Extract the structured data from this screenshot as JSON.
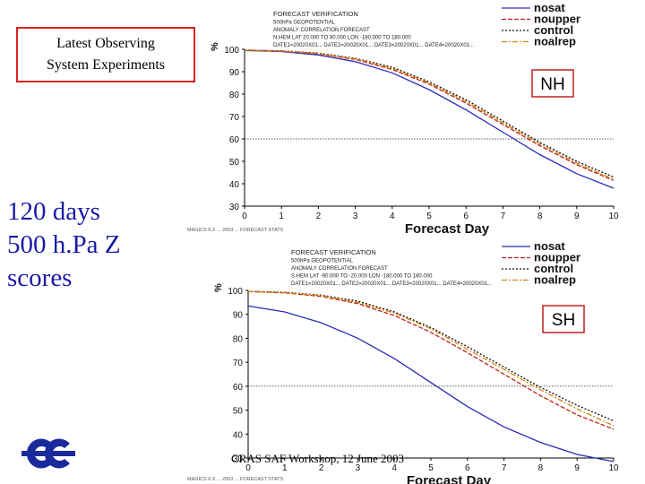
{
  "title_box": {
    "line1": "Latest Observing",
    "line2": "System Experiments"
  },
  "side_note": {
    "line1": "120 days",
    "line2": "500 h.Pa Z",
    "line3": "scores"
  },
  "footer": "CRAS SAF Workshop, 12 June 2003",
  "colors": {
    "nosat": "#2a2ab8",
    "noupper": "#c02020",
    "control": "#101010",
    "noalrep": "#d08a10",
    "box_border": "#d22222",
    "side_text": "#1a1aa8"
  },
  "chart_data": [
    {
      "type": "line",
      "hemisphere": "NH",
      "header": [
        "FORECAST VERIFICATION",
        "500hPa GEOPOTENTIAL",
        "ANOMALY CORRELATION   FORECAST",
        "N.HEM LAT 20.000 TO 90.000 LON -180.000 TO 180.000",
        "DATE1=20020X01... DATE2=20020X01... DATE3=20020X01... DATE4=20020X01..."
      ],
      "footnote": "MAGICS 6.X ... 2003 ... FORECAST STATS",
      "xlabel": "Forecast Day",
      "ylabel": "%",
      "xlim": [
        0,
        10
      ],
      "ylim": [
        30,
        100
      ],
      "xticks": [
        "0",
        "1",
        "2",
        "3",
        "4",
        "5",
        "6",
        "7",
        "8",
        "9",
        "10"
      ],
      "yticks": [
        "100",
        "90",
        "80",
        "70",
        "60",
        "50",
        "40",
        "30"
      ],
      "reference_line": 60,
      "x": [
        0,
        1,
        2,
        3,
        4,
        5,
        6,
        7,
        8,
        9,
        10
      ],
      "series": [
        {
          "name": "nosat",
          "values": [
            99.5,
            99.0,
            97.5,
            94.5,
            89.5,
            82.0,
            73.0,
            63.0,
            53.0,
            44.5,
            38.0
          ]
        },
        {
          "name": "noupper",
          "values": [
            99.6,
            99.2,
            98.0,
            95.5,
            91.0,
            84.5,
            76.0,
            66.5,
            57.0,
            48.5,
            41.5
          ]
        },
        {
          "name": "control",
          "values": [
            99.7,
            99.3,
            98.3,
            96.0,
            92.0,
            85.5,
            77.5,
            68.0,
            58.5,
            50.0,
            43.0
          ]
        },
        {
          "name": "noalrep",
          "values": [
            99.6,
            99.2,
            98.1,
            95.8,
            91.5,
            85.0,
            76.8,
            67.2,
            57.8,
            49.2,
            42.0
          ]
        }
      ],
      "label": "NH"
    },
    {
      "type": "line",
      "hemisphere": "SH",
      "header": [
        "FORECAST VERIFICATION",
        "500hPa GEOPOTENTIAL",
        "ANOMALY CORRELATION   FORECAST",
        "S.HEM LAT -90.000 TO -20.000 LON -180.000 TO 180.000",
        "DATE1=20020X01... DATE2=20020X01... DATE3=20020X01... DATE4=20020X01..."
      ],
      "footnote": "MAGICS 6.X ... 2003 ... FORECAST STATS",
      "xlabel": "Forecast Day",
      "ylabel": "%",
      "xlim": [
        0,
        10
      ],
      "ylim": [
        30,
        100
      ],
      "xticks": [
        "0",
        "1",
        "2",
        "3",
        "4",
        "5",
        "6",
        "7",
        "8",
        "9",
        "10"
      ],
      "yticks": [
        "100",
        "90",
        "80",
        "70",
        "60",
        "50",
        "40",
        "30"
      ],
      "reference_line": 60,
      "x": [
        0,
        1,
        2,
        3,
        4,
        5,
        6,
        7,
        8,
        9,
        10
      ],
      "series": [
        {
          "name": "nosat",
          "values": [
            93.5,
            91.0,
            86.5,
            80.0,
            71.5,
            61.5,
            51.5,
            43.0,
            36.5,
            31.5,
            28.5
          ]
        },
        {
          "name": "noupper",
          "values": [
            99.5,
            99.0,
            97.5,
            94.5,
            89.5,
            82.5,
            74.0,
            65.0,
            56.0,
            48.0,
            42.0
          ]
        },
        {
          "name": "control",
          "values": [
            99.6,
            99.2,
            98.0,
            95.5,
            91.0,
            84.5,
            76.5,
            68.0,
            59.5,
            52.0,
            45.5
          ]
        },
        {
          "name": "noalrep",
          "values": [
            99.5,
            99.1,
            97.8,
            95.0,
            90.5,
            84.0,
            75.5,
            67.0,
            58.5,
            50.5,
            43.5
          ]
        }
      ],
      "label": "SH"
    }
  ]
}
